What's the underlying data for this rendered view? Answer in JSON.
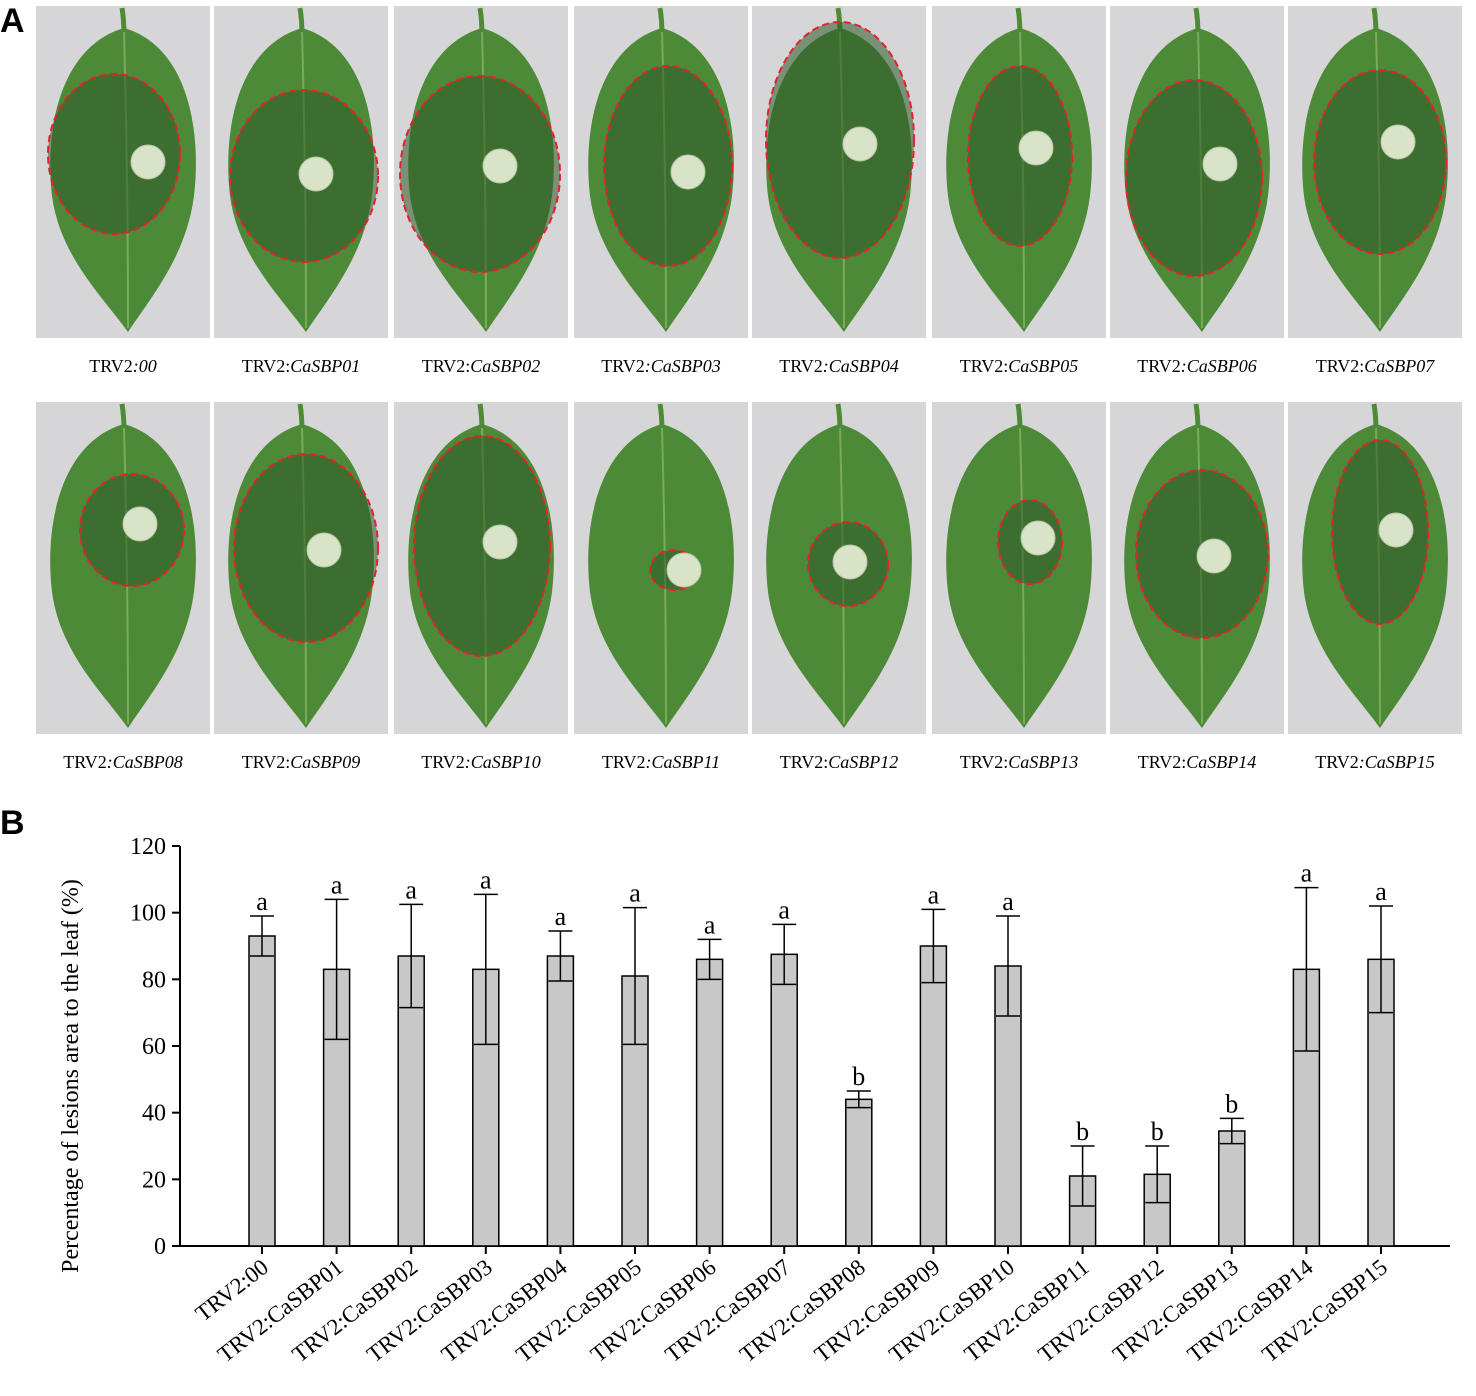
{
  "panel_a": {
    "letter": "A",
    "rows": [
      [
        {
          "prefix": "TRV2",
          "gene": ":00"
        },
        {
          "prefix": "TRV2:",
          "gene": "CaSBP01"
        },
        {
          "prefix": "TRV2:",
          "gene": "CaSBP02"
        },
        {
          "prefix": "TRV2",
          "gene": ":CaSBP03"
        },
        {
          "prefix": "TRV2",
          "gene": ":CaSBP04"
        },
        {
          "prefix": "TRV2:",
          "gene": "CaSBP05"
        },
        {
          "prefix": "TRV2",
          "gene": ":CaSBP06"
        },
        {
          "prefix": "TRV2:",
          "gene": "CaSBP07"
        }
      ],
      [
        {
          "prefix": "TRV2",
          "gene": ":CaSBP08"
        },
        {
          "prefix": "TRV2:",
          "gene": "CaSBP09"
        },
        {
          "prefix": "TRV2",
          "gene": ":CaSBP10"
        },
        {
          "prefix": "TRV2",
          "gene": ":CaSBP11"
        },
        {
          "prefix": "TRV2:",
          "gene": "CaSBP12"
        },
        {
          "prefix": "TRV2:",
          "gene": "CaSBP13"
        },
        {
          "prefix": "TRV2:",
          "gene": "CaSBP14"
        },
        {
          "prefix": "TRV2",
          "gene": ":CaSBP15"
        }
      ]
    ]
  },
  "panel_b": {
    "letter": "B"
  },
  "chart_data": {
    "type": "bar",
    "ylabel": "Percentage of  lesions area to the leaf (%)",
    "ylim": [
      0,
      120
    ],
    "yticks": [
      "0",
      "20",
      "40",
      "60",
      "80",
      "100",
      "120"
    ],
    "categories": [
      "TRV2:00",
      "TRV2:CaSBP01",
      "TRV2:CaSBP02",
      "TRV2:CaSBP03",
      "TRV2:CaSBP04",
      "TRV2:CaSBP05",
      "TRV2:CaSBP06",
      "TRV2:CaSBP07",
      "TRV2:CaSBP08",
      "TRV2:CaSBP09",
      "TRV2:CaSBP10",
      "TRV2:CaSBP11",
      "TRV2:CaSBP12",
      "TRV2:CaSBP13",
      "TRV2:CaSBP14",
      "TRV2:CaSBP15"
    ],
    "values": [
      93,
      83,
      87,
      83,
      87,
      81,
      86,
      87.5,
      44,
      90,
      84,
      21,
      21.5,
      34.5,
      83,
      86
    ],
    "error": [
      6,
      21,
      15.5,
      22.5,
      7.5,
      20.5,
      6,
      9,
      2.5,
      11,
      15,
      9,
      8.5,
      3.8,
      24.5,
      16
    ],
    "significance": [
      "a",
      "a",
      "a",
      "a",
      "a",
      "a",
      "a",
      "a",
      "b",
      "a",
      "a",
      "b",
      "b",
      "b",
      "a",
      "a"
    ],
    "bar_color": "#c8c8c8",
    "grid": false
  }
}
